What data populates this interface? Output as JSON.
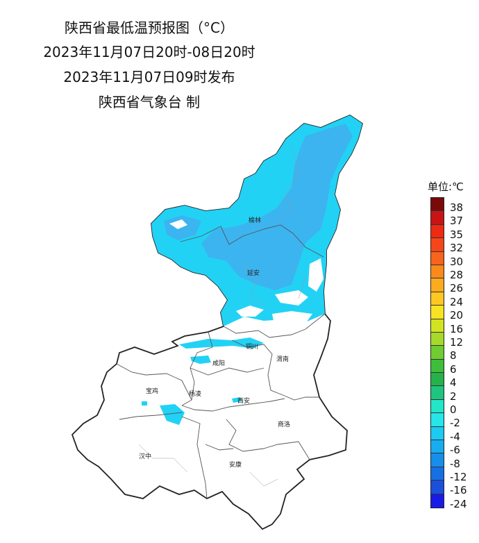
{
  "header": {
    "title": "陕西省最低温预报图（°C）",
    "period": "2023年11月07日20时-08日20时",
    "issued": "2023年11月07日09时发布",
    "issuer": "陕西省气象台 制"
  },
  "legend": {
    "title": "单位:℃",
    "items": [
      {
        "label": "38",
        "color": "#7a0a0a"
      },
      {
        "label": "37",
        "color": "#c81414"
      },
      {
        "label": "35",
        "color": "#ee2a12"
      },
      {
        "label": "32",
        "color": "#f5461a"
      },
      {
        "label": "30",
        "color": "#f8641c"
      },
      {
        "label": "28",
        "color": "#fa8a1c"
      },
      {
        "label": "26",
        "color": "#fcab1e"
      },
      {
        "label": "24",
        "color": "#fdc822"
      },
      {
        "label": "20",
        "color": "#f7e323"
      },
      {
        "label": "16",
        "color": "#d2e421"
      },
      {
        "label": "12",
        "color": "#a6d92a"
      },
      {
        "label": "8",
        "color": "#70cc33"
      },
      {
        "label": "6",
        "color": "#3fbe3b"
      },
      {
        "label": "4",
        "color": "#26b24a"
      },
      {
        "label": "2",
        "color": "#1fc47e"
      },
      {
        "label": "0",
        "color": "#23e6c8"
      },
      {
        "label": "-2",
        "color": "#26e6ea"
      },
      {
        "label": "-4",
        "color": "#1ccaf2"
      },
      {
        "label": "-6",
        "color": "#18adf0"
      },
      {
        "label": "-8",
        "color": "#178eea"
      },
      {
        "label": "-12",
        "color": "#1670e4"
      },
      {
        "label": "-16",
        "color": "#1a50dc"
      },
      {
        "label": "-24",
        "color": "#1a1ae6"
      }
    ]
  },
  "cities": [
    "榆林",
    "延安",
    "铜川",
    "渭南",
    "咸阳",
    "宝鸡",
    "杨凌",
    "西安",
    "商洛",
    "汉中",
    "安康"
  ],
  "colors": {
    "cold_fill": "#22d2f5",
    "coldest_fill": "#3cb4f0",
    "boundary": "#222222",
    "county_line": "#555555"
  }
}
